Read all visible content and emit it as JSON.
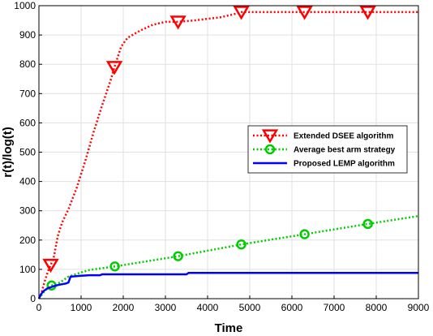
{
  "chart_data": {
    "type": "line",
    "xlabel": "Time",
    "ylabel": "r(t)/log(t)",
    "xlim": [
      0,
      9000
    ],
    "ylim": [
      0,
      1000
    ],
    "x_ticks": [
      0,
      1000,
      2000,
      3000,
      4000,
      5000,
      6000,
      7000,
      8000,
      9000
    ],
    "y_ticks": [
      0,
      100,
      200,
      300,
      400,
      500,
      600,
      700,
      800,
      900,
      1000
    ],
    "grid": true,
    "legend_position": "right-middle",
    "series": [
      {
        "name": "Extended DSEE algorithm",
        "color": "#ff0000",
        "line_style": "dotted",
        "marker": "triangle-down",
        "points": [
          [
            0,
            0
          ],
          [
            60,
            20
          ],
          [
            150,
            65
          ],
          [
            220,
            95
          ],
          [
            280,
            115
          ],
          [
            350,
            140
          ],
          [
            450,
            215
          ],
          [
            550,
            260
          ],
          [
            700,
            305
          ],
          [
            900,
            380
          ],
          [
            1100,
            470
          ],
          [
            1300,
            570
          ],
          [
            1500,
            660
          ],
          [
            1700,
            745
          ],
          [
            1790,
            790
          ],
          [
            1950,
            860
          ],
          [
            2100,
            890
          ],
          [
            2400,
            915
          ],
          [
            2700,
            935
          ],
          [
            3000,
            945
          ],
          [
            3300,
            945
          ],
          [
            3700,
            950
          ],
          [
            4000,
            955
          ],
          [
            4300,
            960
          ],
          [
            4600,
            970
          ],
          [
            4800,
            978
          ],
          [
            5000,
            978
          ],
          [
            6000,
            978
          ],
          [
            7000,
            978
          ],
          [
            8000,
            978
          ],
          [
            9000,
            978
          ]
        ],
        "marker_points": [
          [
            280,
            115
          ],
          [
            1790,
            790
          ],
          [
            3300,
            945
          ],
          [
            4800,
            978
          ],
          [
            6300,
            978
          ],
          [
            7800,
            978
          ]
        ]
      },
      {
        "name": "Average best arm strategy",
        "color": "#00cc00",
        "line_style": "dotted",
        "marker": "circle",
        "points": [
          [
            0,
            0
          ],
          [
            100,
            20
          ],
          [
            200,
            35
          ],
          [
            300,
            45
          ],
          [
            500,
            55
          ],
          [
            700,
            75
          ],
          [
            900,
            85
          ],
          [
            1200,
            98
          ],
          [
            1800,
            110
          ],
          [
            3300,
            145
          ],
          [
            4800,
            185
          ],
          [
            6300,
            220
          ],
          [
            7800,
            255
          ],
          [
            9000,
            282
          ]
        ],
        "marker_points": [
          [
            300,
            45
          ],
          [
            1800,
            110
          ],
          [
            3300,
            145
          ],
          [
            4800,
            185
          ],
          [
            6300,
            220
          ],
          [
            7800,
            255
          ]
        ]
      },
      {
        "name": "Proposed LEMP algorithm",
        "color": "#0000ff",
        "line_style": "solid",
        "marker": "none",
        "points": [
          [
            0,
            0
          ],
          [
            50,
            15
          ],
          [
            100,
            25
          ],
          [
            200,
            35
          ],
          [
            300,
            40
          ],
          [
            400,
            45
          ],
          [
            500,
            48
          ],
          [
            650,
            52
          ],
          [
            700,
            55
          ],
          [
            750,
            75
          ],
          [
            1000,
            78
          ],
          [
            1200,
            80
          ],
          [
            1450,
            80
          ],
          [
            1500,
            83
          ],
          [
            3500,
            83
          ],
          [
            3550,
            88
          ],
          [
            9000,
            88
          ]
        ]
      }
    ]
  }
}
